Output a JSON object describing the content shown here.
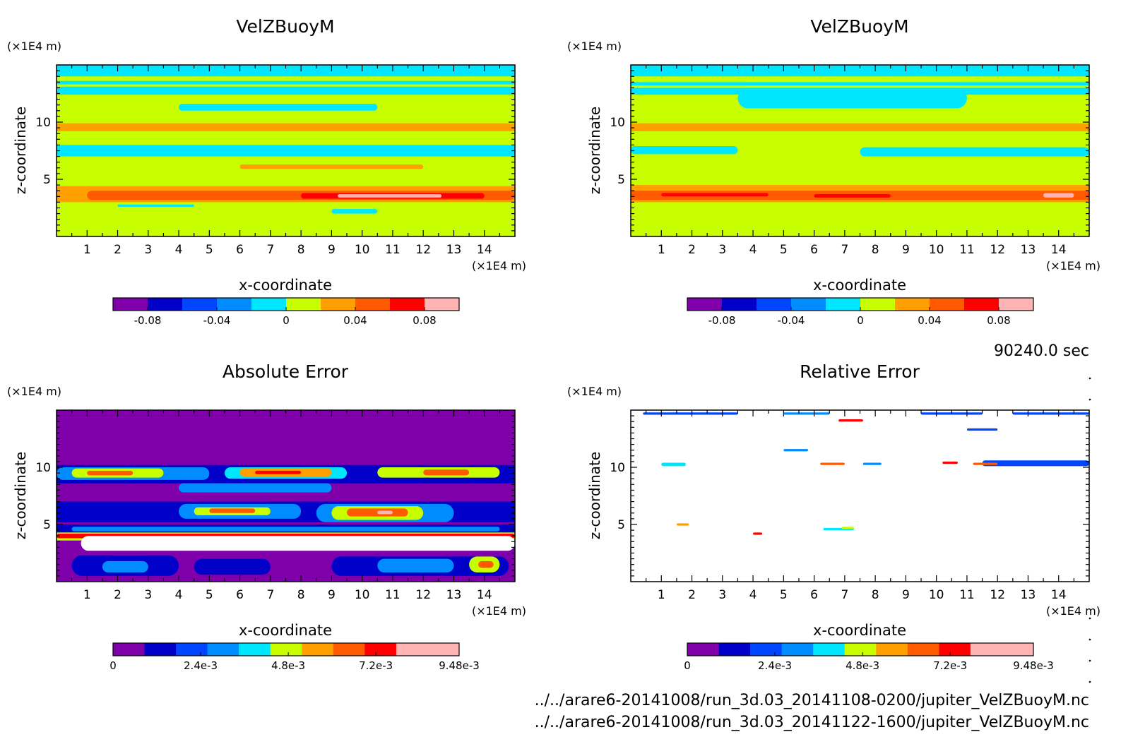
{
  "time_label": "90240.0 sec",
  "file_paths": [
    "../../arare6-20141008/run_3d.03_20141108-0200/jupiter_VelZBuoyM.nc",
    "../../arare6-20141008/run_3d.03_20141122-1600/jupiter_VelZBuoyM.nc"
  ],
  "chart_data": [
    {
      "type": "heatmap",
      "title": "VelZBuoyM",
      "xlabel": "x-coordinate",
      "ylabel": "z-coordinate",
      "x_unit": "(×1E4 m)",
      "y_unit": "(×1E4 m)",
      "xlim": [
        0,
        15
      ],
      "ylim": [
        0,
        15
      ],
      "xticks": [
        "1",
        "2",
        "3",
        "4",
        "5",
        "6",
        "7",
        "8",
        "9",
        "10",
        "11",
        "12",
        "13",
        "14"
      ],
      "yticks": [
        "5",
        "10"
      ],
      "color_levels": [
        "#7f00aa",
        "#0000c8",
        "#0046ff",
        "#008cff",
        "#00e6ff",
        "#c8ff00",
        "#ffa000",
        "#ff5a00",
        "#ff0000",
        "#ffb4b4"
      ],
      "colorbar_ticks": [
        "-0.08",
        "-0.04",
        "0",
        "0.04",
        "0.08"
      ],
      "colorbar_range": [
        -0.1,
        0.1
      ],
      "base_level": 5,
      "bands": [
        {
          "z0": 14.0,
          "z1": 15.0,
          "level": 4
        },
        {
          "z0": 13.3,
          "z1": 13.6,
          "level": 4
        },
        {
          "z0": 12.4,
          "z1": 13.1,
          "level": 4
        },
        {
          "z0": 11.0,
          "z1": 11.6,
          "level": 4,
          "x0": 4.0,
          "x1": 10.5
        },
        {
          "z0": 9.2,
          "z1": 9.9,
          "level": 6
        },
        {
          "z0": 7.0,
          "z1": 8.0,
          "level": 4
        },
        {
          "z0": 5.9,
          "z1": 6.3,
          "level": 6,
          "x0": 6.0,
          "x1": 12.0
        },
        {
          "z0": 3.0,
          "z1": 4.4,
          "level": 6
        },
        {
          "z0": 3.2,
          "z1": 4.0,
          "level": 7,
          "x0": 1.0,
          "x1": 15.0
        },
        {
          "z0": 3.3,
          "z1": 3.8,
          "level": 8,
          "x0": 8.0,
          "x1": 14.0
        },
        {
          "z0": 3.4,
          "z1": 3.7,
          "level": 9,
          "x0": 9.2,
          "x1": 12.6
        },
        {
          "z0": 2.6,
          "z1": 2.8,
          "level": 4,
          "x0": 2.0,
          "x1": 4.5
        },
        {
          "z0": 2.0,
          "z1": 2.4,
          "level": 4,
          "x0": 9.0,
          "x1": 10.5
        }
      ]
    },
    {
      "type": "heatmap",
      "title": "VelZBuoyM",
      "xlabel": "x-coordinate",
      "ylabel": "z-coordinate",
      "x_unit": "(×1E4 m)",
      "y_unit": "(×1E4 m)",
      "xlim": [
        0,
        15
      ],
      "ylim": [
        0,
        15
      ],
      "xticks": [
        "1",
        "2",
        "3",
        "4",
        "5",
        "6",
        "7",
        "8",
        "9",
        "10",
        "11",
        "12",
        "13",
        "14"
      ],
      "yticks": [
        "5",
        "10"
      ],
      "color_levels": [
        "#7f00aa",
        "#0000c8",
        "#0046ff",
        "#008cff",
        "#00e6ff",
        "#c8ff00",
        "#ffa000",
        "#ff5a00",
        "#ff0000",
        "#ffb4b4"
      ],
      "colorbar_ticks": [
        "-0.08",
        "-0.04",
        "0",
        "0.04",
        "0.08"
      ],
      "colorbar_range": [
        -0.1,
        0.1
      ],
      "base_level": 5,
      "bands": [
        {
          "z0": 14.0,
          "z1": 15.0,
          "level": 4
        },
        {
          "z0": 13.2,
          "z1": 13.5,
          "level": 4
        },
        {
          "z0": 11.2,
          "z1": 13.0,
          "level": 4,
          "x0": 3.5,
          "x1": 11.0
        },
        {
          "z0": 12.4,
          "z1": 13.0,
          "level": 4
        },
        {
          "z0": 9.2,
          "z1": 9.9,
          "level": 6
        },
        {
          "z0": 7.2,
          "z1": 7.9,
          "level": 4,
          "x0": 0.0,
          "x1": 3.5
        },
        {
          "z0": 7.0,
          "z1": 7.8,
          "level": 4,
          "x0": 7.5,
          "x1": 15.0
        },
        {
          "z0": 3.0,
          "z1": 4.5,
          "level": 6
        },
        {
          "z0": 3.2,
          "z1": 4.0,
          "level": 7
        },
        {
          "z0": 3.5,
          "z1": 3.8,
          "level": 8,
          "x0": 1.0,
          "x1": 4.5
        },
        {
          "z0": 3.4,
          "z1": 3.7,
          "level": 8,
          "x0": 6.0,
          "x1": 8.5
        },
        {
          "z0": 3.4,
          "z1": 3.8,
          "level": 9,
          "x0": 13.5,
          "x1": 14.5
        }
      ]
    },
    {
      "type": "heatmap",
      "title": "Absolute Error",
      "xlabel": "x-coordinate",
      "ylabel": "z-coordinate",
      "x_unit": "(×1E4 m)",
      "y_unit": "(×1E4 m)",
      "xlim": [
        0,
        15
      ],
      "ylim": [
        0,
        15
      ],
      "xticks": [
        "1",
        "2",
        "3",
        "4",
        "5",
        "6",
        "7",
        "8",
        "9",
        "10",
        "11",
        "12",
        "13",
        "14"
      ],
      "yticks": [
        "5",
        "10"
      ],
      "color_levels": [
        "#7f00aa",
        "#0000c8",
        "#0046ff",
        "#008cff",
        "#00e6ff",
        "#c8ff00",
        "#ffa000",
        "#ff5a00",
        "#ff0000",
        "#ffb4b4"
      ],
      "colorbar_ticks": [
        "0",
        "2.4e-3",
        "4.8e-3",
        "7.2e-3",
        "9.48e-3"
      ],
      "colorbar_range": [
        0,
        0.00948
      ],
      "base_level": 0,
      "bands": [
        {
          "z0": 8.6,
          "z1": 10.2,
          "level": 1
        },
        {
          "z0": 8.9,
          "z1": 10.0,
          "level": 3,
          "x0": 0.0,
          "x1": 5.0
        },
        {
          "z0": 9.1,
          "z1": 9.9,
          "level": 5,
          "x0": 0.5,
          "x1": 3.5
        },
        {
          "z0": 9.3,
          "z1": 9.7,
          "level": 7,
          "x0": 1.0,
          "x1": 2.5
        },
        {
          "z0": 9.0,
          "z1": 10.0,
          "level": 4,
          "x0": 5.5,
          "x1": 9.5
        },
        {
          "z0": 9.2,
          "z1": 9.9,
          "level": 6,
          "x0": 6.0,
          "x1": 9.0
        },
        {
          "z0": 9.4,
          "z1": 9.7,
          "level": 8,
          "x0": 6.5,
          "x1": 8.0
        },
        {
          "z0": 9.1,
          "z1": 10.0,
          "level": 5,
          "x0": 10.5,
          "x1": 14.5
        },
        {
          "z0": 9.3,
          "z1": 9.8,
          "level": 7,
          "x0": 12.0,
          "x1": 13.5
        },
        {
          "z0": 7.8,
          "z1": 8.6,
          "level": 3,
          "x0": 4.0,
          "x1": 9.0
        },
        {
          "z0": 5.2,
          "z1": 7.0,
          "level": 1
        },
        {
          "z0": 5.5,
          "z1": 6.8,
          "level": 3,
          "x0": 4.0,
          "x1": 8.0
        },
        {
          "z0": 5.8,
          "z1": 6.5,
          "level": 5,
          "x0": 4.5,
          "x1": 7.0
        },
        {
          "z0": 6.0,
          "z1": 6.4,
          "level": 7,
          "x0": 5.0,
          "x1": 6.5
        },
        {
          "z0": 5.2,
          "z1": 6.8,
          "level": 3,
          "x0": 8.5,
          "x1": 13.0
        },
        {
          "z0": 5.4,
          "z1": 6.6,
          "level": 5,
          "x0": 9.0,
          "x1": 12.0
        },
        {
          "z0": 5.7,
          "z1": 6.4,
          "level": 7,
          "x0": 9.5,
          "x1": 11.5
        },
        {
          "z0": 5.9,
          "z1": 6.2,
          "level": 9,
          "x0": 10.5,
          "x1": 11.0
        },
        {
          "z0": 4.2,
          "z1": 5.0,
          "level": 1
        },
        {
          "z0": 4.4,
          "z1": 4.8,
          "level": 3,
          "x0": 0.5,
          "x1": 14.5
        },
        {
          "z0": 3.6,
          "z1": 4.3,
          "level": 5
        },
        {
          "z0": 3.8,
          "z1": 4.2,
          "level": 8,
          "x0": 0.0,
          "x1": 15.0
        },
        {
          "z0": 2.7,
          "z1": 4.0,
          "level": 10,
          "x0": 0.8,
          "x1": 15.0
        },
        {
          "z0": 0.5,
          "z1": 2.3,
          "level": 1,
          "x0": 0.5,
          "x1": 4.0
        },
        {
          "z0": 0.8,
          "z1": 1.8,
          "level": 3,
          "x0": 1.5,
          "x1": 3.0
        },
        {
          "z0": 0.6,
          "z1": 2.0,
          "level": 1,
          "x0": 4.5,
          "x1": 7.0
        },
        {
          "z0": 0.5,
          "z1": 2.2,
          "level": 1,
          "x0": 9.0,
          "x1": 14.8
        },
        {
          "z0": 0.8,
          "z1": 2.0,
          "level": 3,
          "x0": 10.5,
          "x1": 13.0
        },
        {
          "z0": 0.8,
          "z1": 2.2,
          "level": 5,
          "x0": 13.5,
          "x1": 14.5
        },
        {
          "z0": 1.2,
          "z1": 1.8,
          "level": 7,
          "x0": 13.8,
          "x1": 14.3
        }
      ]
    },
    {
      "type": "heatmap",
      "title": "Relative Error",
      "xlabel": "x-coordinate",
      "ylabel": "z-coordinate",
      "x_unit": "(×1E4 m)",
      "y_unit": "(×1E4 m)",
      "xlim": [
        0,
        15
      ],
      "ylim": [
        0,
        15
      ],
      "xticks": [
        "1",
        "2",
        "3",
        "4",
        "5",
        "6",
        "7",
        "8",
        "9",
        "10",
        "11",
        "12",
        "13",
        "14"
      ],
      "yticks": [
        "5",
        "10"
      ],
      "color_levels": [
        "#7f00aa",
        "#0000c8",
        "#0046ff",
        "#008cff",
        "#00e6ff",
        "#c8ff00",
        "#ffa000",
        "#ff5a00",
        "#ff0000",
        "#ffb4b4"
      ],
      "colorbar_ticks": [
        "0",
        "2.4e-3",
        "4.8e-3",
        "7.2e-3",
        "9.48e-3"
      ],
      "colorbar_range": [
        0,
        0.00948
      ],
      "base_level": 10,
      "bands": [
        {
          "z0": 14.6,
          "z1": 14.8,
          "level": 2,
          "x0": 0.4,
          "x1": 3.5
        },
        {
          "z0": 14.6,
          "z1": 14.8,
          "level": 3,
          "x0": 5.0,
          "x1": 6.5
        },
        {
          "z0": 14.6,
          "z1": 14.8,
          "level": 2,
          "x0": 9.5,
          "x1": 11.5
        },
        {
          "z0": 14.6,
          "z1": 14.8,
          "level": 2,
          "x0": 12.5,
          "x1": 15.0
        },
        {
          "z0": 14.0,
          "z1": 14.2,
          "level": 8,
          "x0": 6.8,
          "x1": 7.6
        },
        {
          "z0": 13.2,
          "z1": 13.4,
          "level": 2,
          "x0": 11.0,
          "x1": 12.0
        },
        {
          "z0": 11.4,
          "z1": 11.6,
          "level": 3,
          "x0": 5.0,
          "x1": 5.8
        },
        {
          "z0": 10.1,
          "z1": 10.4,
          "level": 4,
          "x0": 1.0,
          "x1": 1.8
        },
        {
          "z0": 10.2,
          "z1": 10.4,
          "level": 7,
          "x0": 6.2,
          "x1": 7.0
        },
        {
          "z0": 10.2,
          "z1": 10.4,
          "level": 3,
          "x0": 7.6,
          "x1": 8.2
        },
        {
          "z0": 10.3,
          "z1": 10.5,
          "level": 8,
          "x0": 10.2,
          "x1": 10.7
        },
        {
          "z0": 10.1,
          "z1": 10.6,
          "level": 2,
          "x0": 11.5,
          "x1": 15.0
        },
        {
          "z0": 10.2,
          "z1": 10.4,
          "level": 7,
          "x0": 11.2,
          "x1": 12.0
        },
        {
          "z0": 4.9,
          "z1": 5.1,
          "level": 6,
          "x0": 1.5,
          "x1": 1.9
        },
        {
          "z0": 4.5,
          "z1": 4.7,
          "level": 4,
          "x0": 6.3,
          "x1": 7.3
        },
        {
          "z0": 4.6,
          "z1": 4.8,
          "level": 5,
          "x0": 6.9,
          "x1": 7.3
        },
        {
          "z0": 4.1,
          "z1": 4.3,
          "level": 8,
          "x0": 4.0,
          "x1": 4.3
        }
      ]
    }
  ]
}
